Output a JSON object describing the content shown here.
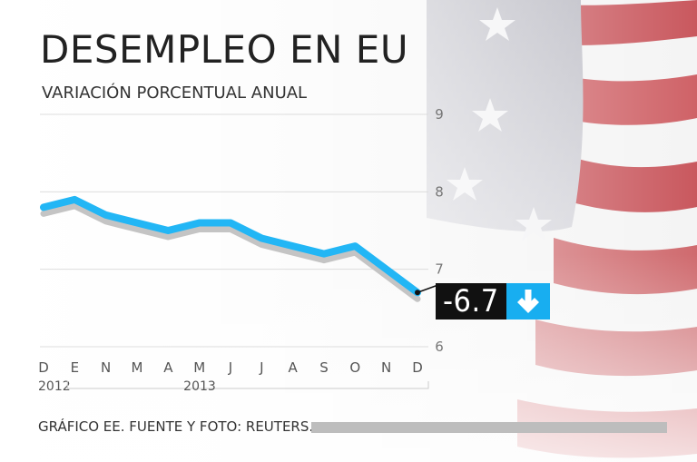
{
  "header": {
    "title": "DESEMPLEO EN EU",
    "subtitle": "VARIACIÓN PORCENTUAL ANUAL"
  },
  "footer": {
    "source": "GRÁFICO EE. FUENTE Y FOTO: REUTERS."
  },
  "callout": {
    "value": "-6.7",
    "icon": "down-arrow-icon",
    "color": "#18aef0"
  },
  "chart_data": {
    "type": "line",
    "title": "DESEMPLEO EN EU",
    "subtitle": "VARIACIÓN PORCENTUAL ANUAL",
    "categories": [
      "D",
      "E",
      "N",
      "M",
      "A",
      "M",
      "J",
      "J",
      "A",
      "S",
      "O",
      "N",
      "D"
    ],
    "year_labels": [
      "2012",
      "2013"
    ],
    "series": [
      {
        "values": [
          7.8,
          7.9,
          7.7,
          7.6,
          7.5,
          7.6,
          7.6,
          7.4,
          7.3,
          7.2,
          7.3,
          7.0,
          6.7
        ],
        "color": "#22b6f5"
      }
    ],
    "yticks": [
      9,
      8,
      7,
      6
    ],
    "ylim": [
      6,
      9
    ],
    "grid": true,
    "y_axis_position": "right"
  }
}
